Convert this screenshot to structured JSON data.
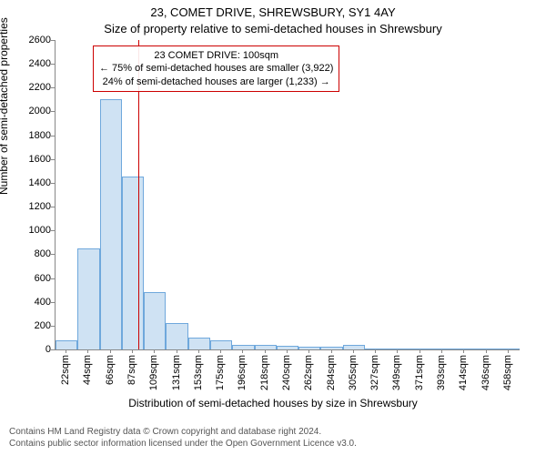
{
  "titles": {
    "main": "23, COMET DRIVE, SHREWSBURY, SY1 4AY",
    "sub": "Size of property relative to semi-detached houses in Shrewsbury"
  },
  "axes": {
    "y_label": "Number of semi-detached properties",
    "x_label": "Distribution of semi-detached houses by size in Shrewsbury",
    "y_min": 0,
    "y_max": 2600,
    "y_tick_step": 200,
    "x_tick_labels": [
      "22sqm",
      "44sqm",
      "66sqm",
      "87sqm",
      "109sqm",
      "131sqm",
      "153sqm",
      "175sqm",
      "196sqm",
      "218sqm",
      "240sqm",
      "262sqm",
      "284sqm",
      "305sqm",
      "327sqm",
      "349sqm",
      "371sqm",
      "393sqm",
      "414sqm",
      "436sqm",
      "458sqm"
    ]
  },
  "chart": {
    "type": "histogram",
    "bar_fill": "#cfe2f3",
    "bar_stroke": "#6fa8dc",
    "background": "#ffffff",
    "values": [
      80,
      850,
      2100,
      1450,
      480,
      220,
      100,
      80,
      40,
      35,
      30,
      20,
      20,
      40,
      5,
      5,
      3,
      3,
      3,
      3,
      3
    ],
    "panel_border_color": "#888888"
  },
  "marker": {
    "position_value": 100,
    "x_min": 22,
    "x_max": 458,
    "line_color": "#cc0000",
    "box_border": "#cc0000",
    "box_lines": [
      "23 COMET DRIVE: 100sqm",
      "← 75% of semi-detached houses are smaller (3,922)",
      "24% of semi-detached houses are larger (1,233) →"
    ]
  },
  "footer": {
    "line1": "Contains HM Land Registry data © Crown copyright and database right 2024.",
    "line2": "Contains public sector information licensed under the Open Government Licence v3.0."
  },
  "style": {
    "title_fontsize": 13,
    "axis_label_fontsize": 12,
    "tick_fontsize": 11,
    "footer_fontsize": 10,
    "footer_color": "#555555"
  }
}
